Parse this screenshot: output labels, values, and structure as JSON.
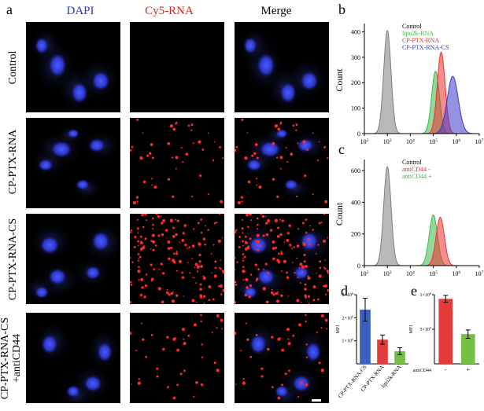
{
  "figure": {
    "panel_labels": {
      "a": "a",
      "b": "b",
      "c": "c",
      "d": "d",
      "e": "e"
    },
    "columns": [
      {
        "label": "DAPI",
        "color": "#2b35c8"
      },
      {
        "label": "Cy5-RNA",
        "color": "#e02020"
      },
      {
        "label": "Merge",
        "color": "#000000"
      }
    ],
    "rows": [
      {
        "label": "Control",
        "label_lines": [
          "Control"
        ]
      },
      {
        "label": "CP-PTX-RNA",
        "label_lines": [
          "CP-PTX-RNA"
        ]
      },
      {
        "label": "CP-PTX-RNA-CS",
        "label_lines": [
          "CP-PTX-RNA-CS"
        ]
      },
      {
        "label": "CP-PTX-RNA-CS +antiCD44",
        "label_lines": [
          "CP-PTX-RNA-CS",
          "+antiCD44"
        ]
      }
    ]
  },
  "chart_data": [
    {
      "panel": "b",
      "type": "area",
      "ylabel": "Count",
      "xscale": "log",
      "xlim": [
        100,
        10000000
      ],
      "ylim": [
        0,
        420
      ],
      "yticks": [
        0,
        100,
        200,
        300,
        400
      ],
      "xtick_labels": [
        "10^2",
        "10^3",
        "10^4",
        "10^5",
        "10^6",
        "10^7"
      ],
      "legend": [
        "Control",
        "lipo2k-RNA",
        "CP-PTX-RNA",
        "CP-PTX-RNA-CS"
      ],
      "legend_position": "top-right",
      "series": [
        {
          "name": "Control",
          "color": "#7d7d7d",
          "peak_x": 1000,
          "peak_y": 405,
          "width": 0.16
        },
        {
          "name": "lipo2k-RNA",
          "color": "#3fb54a",
          "peak_x": 125000,
          "peak_y": 245,
          "width": 0.17
        },
        {
          "name": "CP-PTX-RNA",
          "color": "#ee3030",
          "peak_x": 220000,
          "peak_y": 320,
          "width": 0.17
        },
        {
          "name": "CP-PTX-RNA-CS",
          "color": "#3a3acb",
          "peak_x": 700000,
          "peak_y": 225,
          "width": 0.24
        }
      ]
    },
    {
      "panel": "c",
      "type": "area",
      "ylabel": "Count",
      "xscale": "log",
      "xlim": [
        100,
        10000000
      ],
      "ylim": [
        0,
        650
      ],
      "yticks": [
        0,
        200,
        400,
        600
      ],
      "xtick_labels": [
        "10^2",
        "10^3",
        "10^4",
        "10^5",
        "10^6",
        "10^7"
      ],
      "legend": [
        "Control",
        "antiCD44 -",
        "antiCD44 +"
      ],
      "legend_position": "top-right",
      "series": [
        {
          "name": "Control",
          "color": "#7d7d7d",
          "peak_x": 1000,
          "peak_y": 625,
          "width": 0.16
        },
        {
          "name": "antiCD44 +",
          "color": "#3fb54a",
          "peak_x": 100000,
          "peak_y": 320,
          "width": 0.18
        },
        {
          "name": "antiCD44 -",
          "color": "#ee3030",
          "peak_x": 200000,
          "peak_y": 305,
          "width": 0.18
        }
      ]
    },
    {
      "panel": "d",
      "type": "bar",
      "ylabel": "MFI",
      "ylim": [
        0,
        3000000
      ],
      "ytick_labels": [
        "1×10^6",
        "2×10^6",
        "3×10^6"
      ],
      "yticks": [
        1000000,
        2000000,
        3000000
      ],
      "categories": [
        "CP-PTX-RNA-CS",
        "CP-PTX-RNA",
        "lipo2k-RNA"
      ],
      "values": [
        2350000,
        1050000,
        550000
      ],
      "errors": [
        500000,
        200000,
        150000
      ],
      "colors": [
        "#3a5fbf",
        "#e33a3a",
        "#75c043"
      ]
    },
    {
      "panel": "e",
      "type": "bar",
      "ylabel": "MFI",
      "ylim": [
        0,
        1000000
      ],
      "ytick_labels": [
        "5×10^5",
        "1×10^6"
      ],
      "yticks": [
        500000,
        1000000
      ],
      "categories": [
        "-",
        "+"
      ],
      "xlabel": "antiCD44",
      "values": [
        940000,
        430000
      ],
      "errors": [
        50000,
        60000
      ],
      "colors": [
        "#e33a3a",
        "#75c043"
      ]
    }
  ]
}
